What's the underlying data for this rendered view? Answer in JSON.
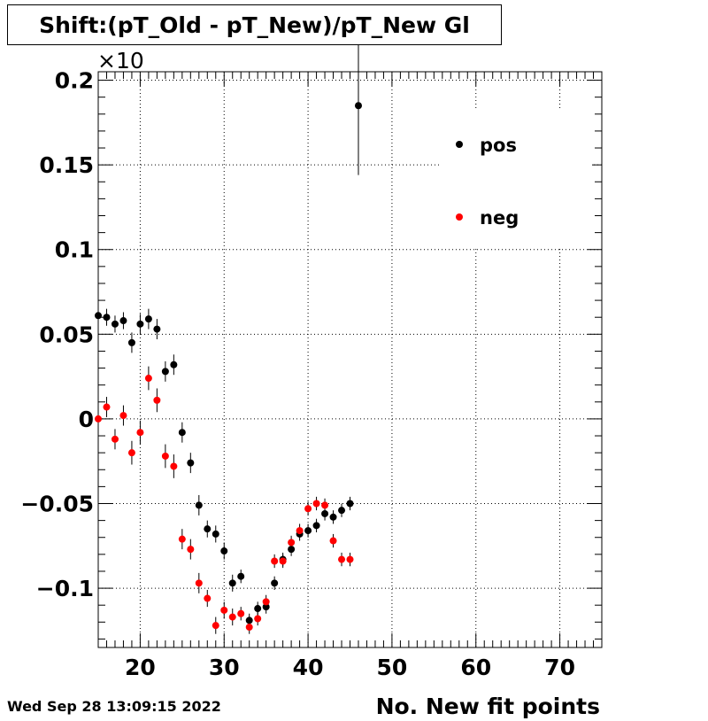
{
  "chart_data": {
    "type": "scatter",
    "title": "Shift:(pT_Old - pT_New)/pT_New Gl",
    "xlabel": "No. New fit points",
    "ylabel": "",
    "y_multiplier_label": "×10",
    "xlim": [
      15,
      75
    ],
    "ylim": [
      -0.135,
      0.205
    ],
    "x_ticks": [
      20,
      30,
      40,
      50,
      60,
      70
    ],
    "x_tick_labels": [
      "20",
      "30",
      "40",
      "50",
      "60",
      "70"
    ],
    "y_ticks": [
      -0.1,
      -0.05,
      0,
      0.05,
      0.1,
      0.15,
      0.2
    ],
    "y_tick_labels": [
      "−0.1",
      "−0.05",
      "0",
      "0.05",
      "0.1",
      "0.15",
      "0.2"
    ],
    "grid": true,
    "legend_position": "top-right",
    "series": [
      {
        "name": "pos",
        "color": "#000000",
        "points": [
          {
            "x": 15,
            "y": 0.061,
            "err": 0.005
          },
          {
            "x": 16,
            "y": 0.06,
            "err": 0.005
          },
          {
            "x": 17,
            "y": 0.056,
            "err": 0.005
          },
          {
            "x": 18,
            "y": 0.058,
            "err": 0.005
          },
          {
            "x": 19,
            "y": 0.045,
            "err": 0.006
          },
          {
            "x": 20,
            "y": 0.056,
            "err": 0.006
          },
          {
            "x": 21,
            "y": 0.059,
            "err": 0.006
          },
          {
            "x": 22,
            "y": 0.053,
            "err": 0.006
          },
          {
            "x": 23,
            "y": 0.028,
            "err": 0.006
          },
          {
            "x": 24,
            "y": 0.032,
            "err": 0.006
          },
          {
            "x": 25,
            "y": -0.008,
            "err": 0.006
          },
          {
            "x": 26,
            "y": -0.026,
            "err": 0.006
          },
          {
            "x": 27,
            "y": -0.051,
            "err": 0.006
          },
          {
            "x": 28,
            "y": -0.065,
            "err": 0.005
          },
          {
            "x": 29,
            "y": -0.068,
            "err": 0.005
          },
          {
            "x": 30,
            "y": -0.078,
            "err": 0.005
          },
          {
            "x": 31,
            "y": -0.097,
            "err": 0.005
          },
          {
            "x": 32,
            "y": -0.093,
            "err": 0.004
          },
          {
            "x": 33,
            "y": -0.119,
            "err": 0.004
          },
          {
            "x": 34,
            "y": -0.112,
            "err": 0.004
          },
          {
            "x": 35,
            "y": -0.111,
            "err": 0.004
          },
          {
            "x": 36,
            "y": -0.097,
            "err": 0.004
          },
          {
            "x": 37,
            "y": -0.083,
            "err": 0.004
          },
          {
            "x": 38,
            "y": -0.077,
            "err": 0.004
          },
          {
            "x": 39,
            "y": -0.068,
            "err": 0.004
          },
          {
            "x": 40,
            "y": -0.066,
            "err": 0.004
          },
          {
            "x": 41,
            "y": -0.063,
            "err": 0.004
          },
          {
            "x": 42,
            "y": -0.056,
            "err": 0.004
          },
          {
            "x": 43,
            "y": -0.058,
            "err": 0.004
          },
          {
            "x": 44,
            "y": -0.054,
            "err": 0.004
          },
          {
            "x": 45,
            "y": -0.05,
            "err": 0.004
          },
          {
            "x": 46,
            "y": 0.185,
            "err": 0.041
          }
        ]
      },
      {
        "name": "neg",
        "color": "#ff0000",
        "points": [
          {
            "x": 15,
            "y": 0.0,
            "err": 0.006
          },
          {
            "x": 16,
            "y": 0.007,
            "err": 0.006
          },
          {
            "x": 17,
            "y": -0.012,
            "err": 0.006
          },
          {
            "x": 18,
            "y": 0.002,
            "err": 0.006
          },
          {
            "x": 19,
            "y": -0.02,
            "err": 0.007
          },
          {
            "x": 20,
            "y": -0.008,
            "err": 0.007
          },
          {
            "x": 21,
            "y": 0.024,
            "err": 0.007
          },
          {
            "x": 22,
            "y": 0.011,
            "err": 0.007
          },
          {
            "x": 23,
            "y": -0.022,
            "err": 0.007
          },
          {
            "x": 24,
            "y": -0.028,
            "err": 0.007
          },
          {
            "x": 25,
            "y": -0.071,
            "err": 0.006
          },
          {
            "x": 26,
            "y": -0.077,
            "err": 0.006
          },
          {
            "x": 27,
            "y": -0.097,
            "err": 0.006
          },
          {
            "x": 28,
            "y": -0.106,
            "err": 0.005
          },
          {
            "x": 29,
            "y": -0.122,
            "err": 0.005
          },
          {
            "x": 30,
            "y": -0.113,
            "err": 0.005
          },
          {
            "x": 31,
            "y": -0.117,
            "err": 0.005
          },
          {
            "x": 32,
            "y": -0.115,
            "err": 0.004
          },
          {
            "x": 33,
            "y": -0.123,
            "err": 0.004
          },
          {
            "x": 34,
            "y": -0.118,
            "err": 0.004
          },
          {
            "x": 35,
            "y": -0.108,
            "err": 0.004
          },
          {
            "x": 36,
            "y": -0.084,
            "err": 0.004
          },
          {
            "x": 37,
            "y": -0.084,
            "err": 0.004
          },
          {
            "x": 38,
            "y": -0.073,
            "err": 0.004
          },
          {
            "x": 39,
            "y": -0.066,
            "err": 0.004
          },
          {
            "x": 40,
            "y": -0.053,
            "err": 0.004
          },
          {
            "x": 41,
            "y": -0.05,
            "err": 0.004
          },
          {
            "x": 42,
            "y": -0.051,
            "err": 0.004
          },
          {
            "x": 43,
            "y": -0.072,
            "err": 0.004
          },
          {
            "x": 44,
            "y": -0.083,
            "err": 0.004
          },
          {
            "x": 45,
            "y": -0.083,
            "err": 0.004
          }
        ]
      }
    ]
  },
  "footer": {
    "date_stamp": "Wed Sep 28 13:09:15 2022"
  }
}
